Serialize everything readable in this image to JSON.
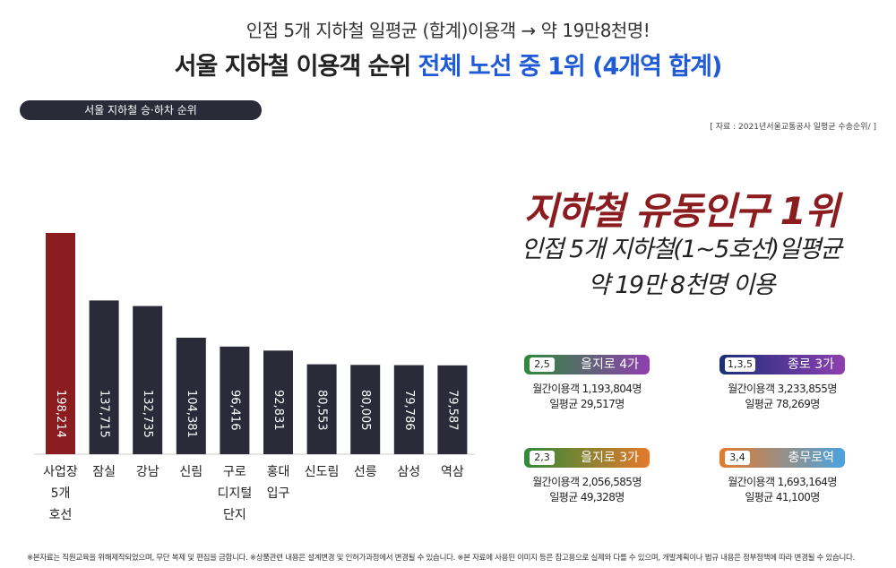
{
  "header": {
    "subtitle": "인접 5개 지하철 일평균 (합계)이용객 → 약 19만8천명!",
    "title_plain": "서울 지하철 이용객 순위 ",
    "title_highlight": "전체 노선 중 1위 (4개역 합계)"
  },
  "section_pill": "서울 지하철 승·하차 순위",
  "source_note": "[ 자료 : 2021년서울교통공사 일평균 수송순위/ ]",
  "colors": {
    "highlight_bar": "#8b1c1f",
    "bar": "#2a2a38",
    "title_accent": "#1f5bd6",
    "headline_red": "#8b1c1f"
  },
  "chart_data": {
    "type": "bar",
    "title": "서울 지하철 승·하차 순위",
    "categories": [
      "사업장 5개 호선",
      "잠실",
      "강남",
      "신림",
      "구로 디지털 단지",
      "홍대 입구",
      "신도림",
      "선릉",
      "삼성",
      "역삼"
    ],
    "category_lines": [
      [
        "사업장",
        "5개",
        "호선"
      ],
      [
        "잠실"
      ],
      [
        "강남"
      ],
      [
        "신림"
      ],
      [
        "구로",
        "디지털",
        "단지"
      ],
      [
        "홍대",
        "입구"
      ],
      [
        "신도림"
      ],
      [
        "선릉"
      ],
      [
        "삼성"
      ],
      [
        "역삼"
      ]
    ],
    "values": [
      198214,
      137715,
      132735,
      104381,
      96416,
      92831,
      80553,
      80005,
      79786,
      79587
    ],
    "value_labels": [
      "198,214",
      "137,715",
      "132,735",
      "104,381",
      "96,416",
      "92,831",
      "80,553",
      "80,005",
      "79,786",
      "79,587"
    ],
    "highlight_index": 0,
    "ylim": [
      0,
      198214
    ]
  },
  "headline": {
    "title": "지하철 유동인구 1위",
    "line1": "인접 5개 지하철(1~5호선)일평균",
    "line2": "약 19만 8천명 이용"
  },
  "stations": [
    {
      "lines": "2,5",
      "name": "을지로 4가",
      "monthly": "월간이용객 1,193,804명",
      "daily": "일평균 29,517명",
      "color_from": "#2f8a3a",
      "color_to": "#8e3fb0"
    },
    {
      "lines": "1,3,5",
      "name": "종로 3가",
      "monthly": "월간이용객 3,233,855명",
      "daily": "일평균 78,269명",
      "color_from": "#1a2f7a",
      "color_to": "#8e3fb0"
    },
    {
      "lines": "2,3",
      "name": "을지로 3가",
      "monthly": "월간이용객 2,056,585명",
      "daily": "일평균 49,328명",
      "color_from": "#2f8a3a",
      "color_to": "#e57a2a"
    },
    {
      "lines": "3,4",
      "name": "충무로역",
      "monthly": "월간이용객 1,693,164명",
      "daily": "일평균 41,100명",
      "color_from": "#e57a2a",
      "color_to": "#4aa3e0"
    }
  ],
  "footer": "※본자료는 직원교육을 위해제작되었으며, 무단 복제 및 편집을 금합니다. ※상품관련 내용은 설계변경 및 인허가과정에서 변경될 수 있습니다. ※본 자료에 사용된 이미지 등은 참고용으로 실제와 다를 수 있으며, 개발계획이나 법규 내용은 정부정책에 따라 변경될 수 있습니다."
}
